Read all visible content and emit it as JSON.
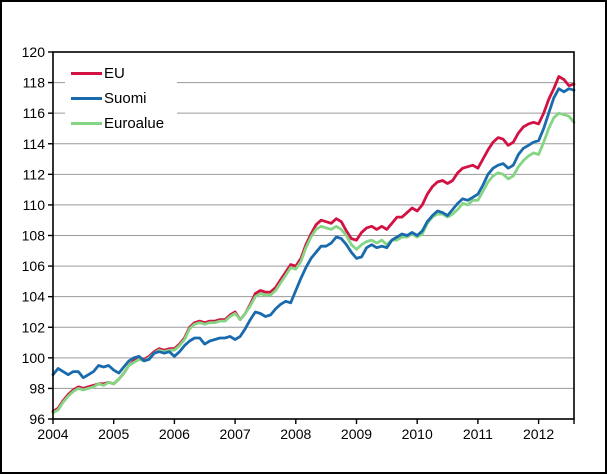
{
  "chart_data": {
    "type": "line",
    "title": "",
    "xlabel": "",
    "ylabel": "",
    "x_start_month": "2004-01",
    "x_end_month": "2012-08",
    "x_tick_labels": [
      "2004",
      "2005",
      "2006",
      "2007",
      "2008",
      "2009",
      "2010",
      "2011",
      "2012"
    ],
    "ylim": [
      96,
      120
    ],
    "y_tick_step": 2,
    "y_tick_labels": [
      "96",
      "98",
      "100",
      "102",
      "104",
      "106",
      "108",
      "110",
      "112",
      "114",
      "116",
      "118",
      "120"
    ],
    "grid": "horizontal-gray",
    "legend_position": "inside-top-left",
    "axis_color": "#000000",
    "gridline_color": "#9a9a9a",
    "series": [
      {
        "name": "EU",
        "color": "#d11242",
        "values": [
          96.5,
          96.7,
          97.2,
          97.6,
          97.9,
          98.1,
          98.0,
          98.1,
          98.2,
          98.3,
          98.3,
          98.4,
          98.3,
          98.6,
          99.0,
          99.5,
          99.8,
          100.0,
          99.9,
          100.1,
          100.4,
          100.6,
          100.5,
          100.6,
          100.6,
          100.9,
          101.3,
          102.0,
          102.3,
          102.4,
          102.3,
          102.4,
          102.4,
          102.5,
          102.5,
          102.8,
          103.0,
          102.5,
          102.9,
          103.5,
          104.2,
          104.4,
          104.3,
          104.3,
          104.6,
          105.1,
          105.6,
          106.1,
          106.0,
          106.5,
          107.4,
          108.1,
          108.7,
          109.0,
          108.9,
          108.8,
          109.1,
          108.9,
          108.3,
          107.8,
          107.7,
          108.2,
          108.5,
          108.6,
          108.4,
          108.6,
          108.4,
          108.8,
          109.2,
          109.2,
          109.5,
          109.8,
          109.6,
          110.0,
          110.7,
          111.2,
          111.5,
          111.6,
          111.4,
          111.6,
          112.1,
          112.4,
          112.5,
          112.6,
          112.4,
          113.0,
          113.6,
          114.1,
          114.4,
          114.3,
          113.9,
          114.1,
          114.7,
          115.1,
          115.3,
          115.4,
          115.3,
          116.0,
          116.9,
          117.6,
          118.4,
          118.2,
          117.8,
          117.9
        ]
      },
      {
        "name": "Suomi",
        "color": "#1a6bad",
        "values": [
          98.9,
          99.3,
          99.1,
          98.9,
          99.1,
          99.1,
          98.7,
          98.9,
          99.1,
          99.5,
          99.4,
          99.5,
          99.2,
          99.0,
          99.4,
          99.8,
          100.0,
          100.1,
          99.8,
          99.9,
          100.3,
          100.4,
          100.3,
          100.4,
          100.1,
          100.4,
          100.8,
          101.1,
          101.3,
          101.3,
          100.9,
          101.1,
          101.2,
          101.3,
          101.3,
          101.4,
          101.2,
          101.4,
          101.9,
          102.5,
          103.0,
          102.9,
          102.7,
          102.8,
          103.2,
          103.5,
          103.7,
          103.6,
          104.4,
          105.2,
          105.9,
          106.5,
          106.9,
          107.3,
          107.3,
          107.5,
          107.9,
          107.8,
          107.4,
          106.9,
          106.5,
          106.6,
          107.2,
          107.4,
          107.2,
          107.3,
          107.2,
          107.7,
          107.9,
          108.1,
          108.0,
          108.2,
          108.0,
          108.3,
          108.9,
          109.3,
          109.6,
          109.5,
          109.3,
          109.7,
          110.1,
          110.4,
          110.3,
          110.5,
          110.7,
          111.3,
          112.0,
          112.4,
          112.6,
          112.7,
          112.4,
          112.6,
          113.3,
          113.7,
          113.9,
          114.1,
          114.2,
          115.0,
          116.0,
          117.0,
          117.6,
          117.4,
          117.6,
          117.5
        ]
      },
      {
        "name": "Euroalue",
        "color": "#85d585",
        "values": [
          96.4,
          96.6,
          97.1,
          97.5,
          97.8,
          98.0,
          97.9,
          98.0,
          98.1,
          98.3,
          98.2,
          98.4,
          98.3,
          98.6,
          99.0,
          99.5,
          99.7,
          99.9,
          99.8,
          100.0,
          100.3,
          100.5,
          100.4,
          100.5,
          100.5,
          100.8,
          101.2,
          101.9,
          102.2,
          102.3,
          102.2,
          102.3,
          102.3,
          102.4,
          102.4,
          102.7,
          102.9,
          102.5,
          102.9,
          103.4,
          104.0,
          104.2,
          104.1,
          104.1,
          104.4,
          104.9,
          105.4,
          105.9,
          105.8,
          106.3,
          107.2,
          107.9,
          108.4,
          108.6,
          108.5,
          108.4,
          108.6,
          108.4,
          108.0,
          107.4,
          107.1,
          107.4,
          107.6,
          107.7,
          107.5,
          107.7,
          107.4,
          107.7,
          107.7,
          107.9,
          107.9,
          108.1,
          107.9,
          108.1,
          108.8,
          109.2,
          109.4,
          109.4,
          109.2,
          109.4,
          109.7,
          110.1,
          110.0,
          110.3,
          110.3,
          110.9,
          111.5,
          111.9,
          112.1,
          112.0,
          111.7,
          111.9,
          112.5,
          112.9,
          113.2,
          113.4,
          113.3,
          114.1,
          115.0,
          115.7,
          116.0,
          115.9,
          115.8,
          115.4
        ]
      }
    ]
  },
  "layout_colors": {
    "background": "#ffffff",
    "frame": "#000000"
  }
}
